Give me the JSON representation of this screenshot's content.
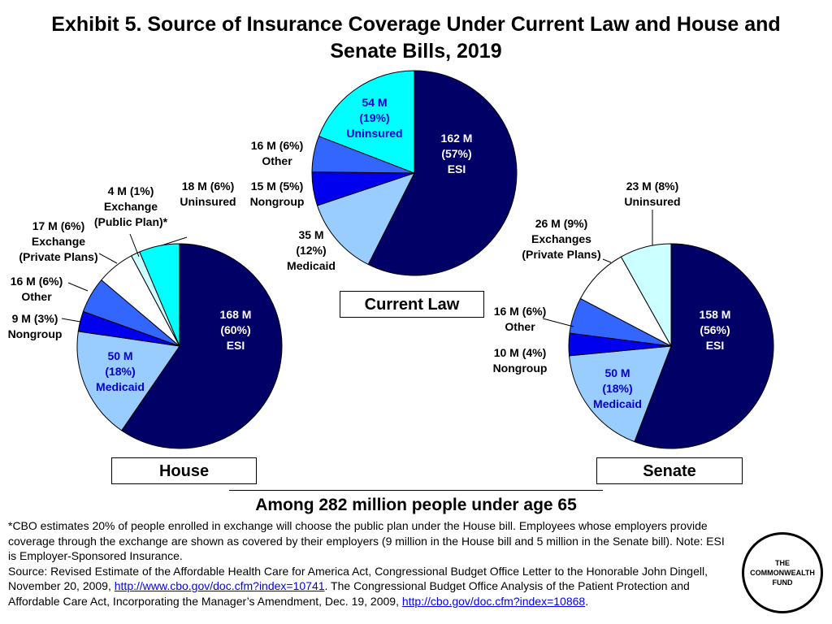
{
  "chart_data": [
    {
      "type": "pie",
      "id": "current-law",
      "caption": "Current Law",
      "slices": [
        {
          "key": "esi",
          "label": "ESI",
          "value": 162,
          "pct": 57,
          "color": "#000066"
        },
        {
          "key": "medicaid",
          "label": "Medicaid",
          "value": 35,
          "pct": 12,
          "color": "#99ccff"
        },
        {
          "key": "nongroup",
          "label": "Nongroup",
          "value": 15,
          "pct": 5,
          "color": "#0000ee"
        },
        {
          "key": "other",
          "label": "Other",
          "value": 16,
          "pct": 6,
          "color": "#3366ff"
        },
        {
          "key": "uninsured",
          "label": "Uninsured",
          "value": 54,
          "pct": 19,
          "color": "#00ffff"
        }
      ],
      "labels": [
        {
          "key": "esi",
          "lines": [
            "162 M",
            "(57%)",
            "ESI"
          ],
          "color": "#ffffff"
        },
        {
          "key": "medicaid",
          "lines": [
            "35 M",
            "(12%)",
            "Medicaid"
          ],
          "color": "#000000"
        },
        {
          "key": "nongroup",
          "lines": [
            "15 M (5%)",
            "Nongroup"
          ],
          "color": "#000000"
        },
        {
          "key": "other",
          "lines": [
            "16 M (6%)",
            "Other"
          ],
          "color": "#000000"
        },
        {
          "key": "uninsured",
          "lines": [
            "54 M",
            "(19%)",
            "Uninsured"
          ],
          "color": "#0000cc"
        }
      ]
    },
    {
      "type": "pie",
      "id": "house",
      "caption": "House",
      "slices": [
        {
          "key": "esi",
          "label": "ESI",
          "value": 168,
          "pct": 60,
          "color": "#000066"
        },
        {
          "key": "medicaid",
          "label": "Medicaid",
          "value": 50,
          "pct": 18,
          "color": "#99ccff"
        },
        {
          "key": "nongroup",
          "label": "Nongroup",
          "value": 9,
          "pct": 3,
          "color": "#0000ee"
        },
        {
          "key": "other",
          "label": "Other",
          "value": 16,
          "pct": 6,
          "color": "#3366ff"
        },
        {
          "key": "exchange-private",
          "label": "Exchange (Private Plans)",
          "value": 17,
          "pct": 6,
          "color": "#ffffff"
        },
        {
          "key": "exchange-public",
          "label": "Exchange (Public Plan)*",
          "value": 4,
          "pct": 1,
          "color": "#ccffff"
        },
        {
          "key": "uninsured",
          "label": "Uninsured",
          "value": 18,
          "pct": 6,
          "color": "#00ffff"
        }
      ],
      "labels": [
        {
          "key": "esi",
          "lines": [
            "168 M",
            "(60%)",
            "ESI"
          ],
          "color": "#ffffff"
        },
        {
          "key": "medicaid",
          "lines": [
            "50 M",
            "(18%)",
            "Medicaid"
          ],
          "color": "#0000cc"
        },
        {
          "key": "nongroup",
          "lines": [
            "9 M (3%)",
            "Nongroup"
          ],
          "color": "#000000"
        },
        {
          "key": "other",
          "lines": [
            "16 M (6%)",
            "Other"
          ],
          "color": "#000000"
        },
        {
          "key": "exchange-private",
          "lines": [
            "17 M (6%)",
            "Exchange",
            "(Private Plans)"
          ],
          "color": "#000000"
        },
        {
          "key": "exchange-public",
          "lines": [
            "4 M (1%)",
            "Exchange",
            "(Public Plan)*"
          ],
          "color": "#000000"
        },
        {
          "key": "uninsured",
          "lines": [
            "18 M (6%)",
            "Uninsured"
          ],
          "color": "#000000"
        }
      ]
    },
    {
      "type": "pie",
      "id": "senate",
      "caption": "Senate",
      "slices": [
        {
          "key": "esi",
          "label": "ESI",
          "value": 158,
          "pct": 56,
          "color": "#000066"
        },
        {
          "key": "medicaid",
          "label": "Medicaid",
          "value": 50,
          "pct": 18,
          "color": "#99ccff"
        },
        {
          "key": "nongroup",
          "label": "Nongroup",
          "value": 10,
          "pct": 4,
          "color": "#0000ee"
        },
        {
          "key": "other",
          "label": "Other",
          "value": 16,
          "pct": 6,
          "color": "#3366ff"
        },
        {
          "key": "exchanges",
          "label": "Exchanges (Private Plans)",
          "value": 26,
          "pct": 9,
          "color": "#ffffff"
        },
        {
          "key": "uninsured",
          "label": "Uninsured",
          "value": 23,
          "pct": 8,
          "color": "#ccffff"
        }
      ],
      "labels": [
        {
          "key": "esi",
          "lines": [
            "158 M",
            "(56%)",
            "ESI"
          ],
          "color": "#ffffff"
        },
        {
          "key": "medicaid",
          "lines": [
            "50 M",
            "(18%)",
            "Medicaid"
          ],
          "color": "#0000cc"
        },
        {
          "key": "nongroup",
          "lines": [
            "10 M (4%)",
            "Nongroup"
          ],
          "color": "#000000"
        },
        {
          "key": "other",
          "lines": [
            "16 M (6%)",
            "Other"
          ],
          "color": "#000000"
        },
        {
          "key": "exchanges",
          "lines": [
            "26 M (9%)",
            "Exchanges",
            "(Private Plans)"
          ],
          "color": "#000000"
        },
        {
          "key": "uninsured",
          "lines": [
            "23 M (8%)",
            "Uninsured"
          ],
          "color": "#000000"
        }
      ]
    }
  ],
  "title": "Exhibit 5. Source of Insurance Coverage Under Current Law and House and Senate Bills, 2019",
  "subtitle": "Among 282 million people under age 65",
  "footnote": "*CBO estimates 20% of people enrolled in exchange will choose the public plan under the House bill. Employees whose employers provide coverage through the exchange are shown as covered by their employers (9 million in the House bill and 5 million in the Senate bill). Note: ESI is Employer-Sponsored Insurance.",
  "source": {
    "prefix": "Source: Revised Estimate of the Affordable Health Care for America Act, Congressional Budget Office Letter to the Honorable John Dingell, November 20, 2009, ",
    "link1": "http://www.cbo.gov/doc.cfm?index=10741",
    "middle": ". The Congressional Budget Office Analysis of the Patient Protection and Affordable Care Act, Incorporating the Manager’s Amendment,  Dec. 19, 2009, ",
    "link2": "http://cbo.gov/doc.cfm?index=10868",
    "suffix": "."
  },
  "logo": {
    "line1": "THE",
    "line2": "COMMONWEALTH",
    "line3": "FUND"
  }
}
